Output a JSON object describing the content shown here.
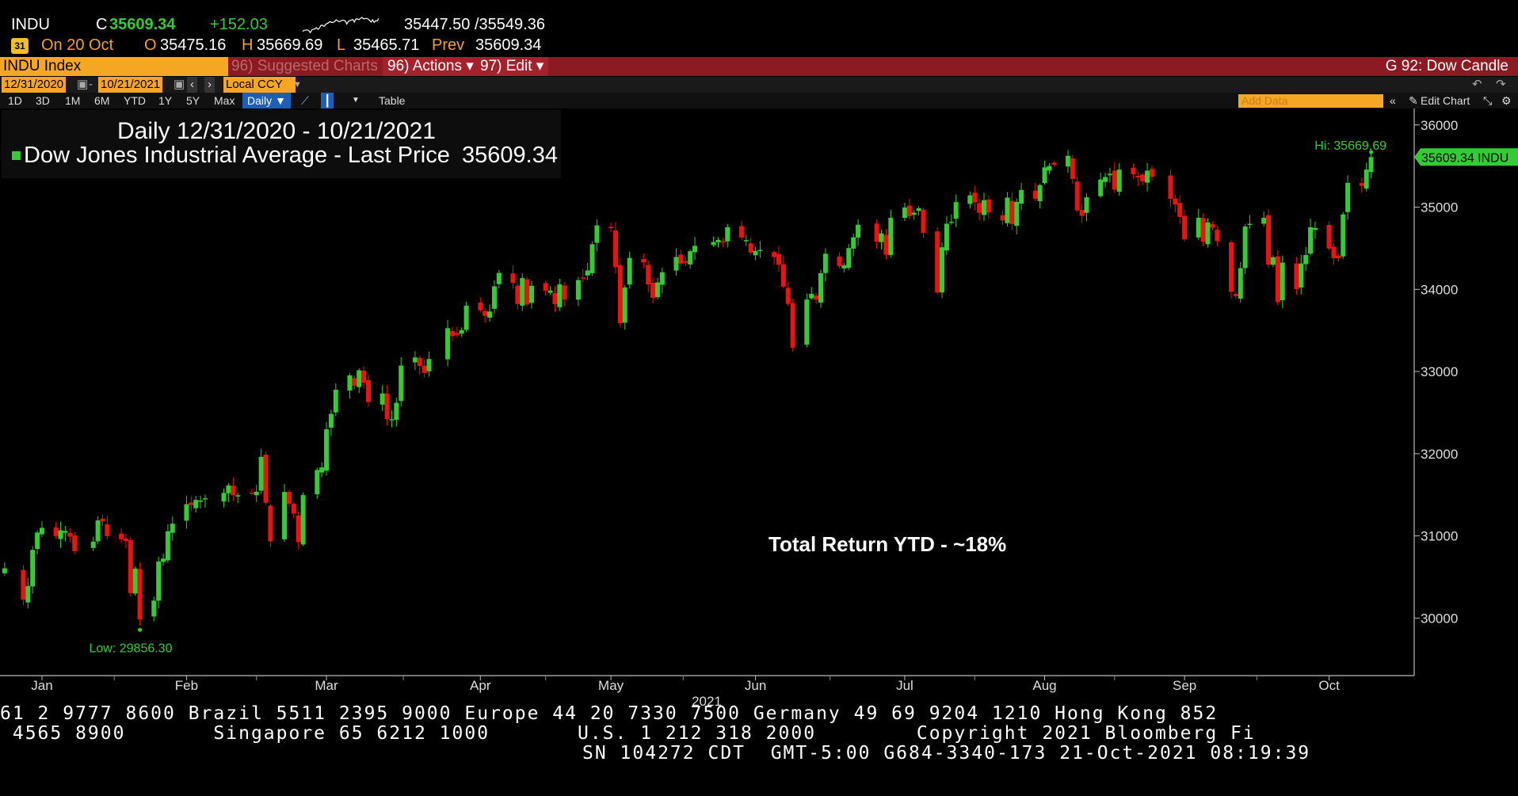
{
  "quote": {
    "ticker": "INDU",
    "close_label": "C",
    "close": "35609.34",
    "change": "+152.03",
    "bid_ask": "35447.50 /35549.36",
    "date_label": "On 20 Oct",
    "open_label": "O",
    "open": "35475.16",
    "high_label": "H",
    "high": "35669.69",
    "low_label": "L",
    "low": "35465.71",
    "prev_label": "Prev",
    "prev": "35609.34"
  },
  "toolbar": {
    "ticker_box": "INDU Index",
    "suggested": "96) Suggested Charts",
    "actions": "96) Actions ▾",
    "edit": "97) Edit ▾",
    "chart_title": "G 92: Dow Candle",
    "start_date": "12/31/2020",
    "end_date": "10/21/2021",
    "currency": "Local CCY",
    "periods": [
      "1D",
      "3D",
      "1M",
      "6M",
      "YTD",
      "1Y",
      "5Y",
      "Max"
    ],
    "frequency": "Daily ▼",
    "table": "Table",
    "add_data_placeholder": "Add Data",
    "edit_chart": "Edit Chart"
  },
  "legend": {
    "title": "Daily 12/31/2020 - 10/21/2021",
    "series": "Dow Jones Industrial Average - Last Price",
    "value": "35609.34"
  },
  "annotation": "Total Return YTD - ~18%",
  "colors": {
    "up": "#33cc33",
    "down": "#ee1111",
    "accent": "#f5a623",
    "bar": "#8b1a22"
  },
  "footer": {
    "line1": "61 2 9777 8600 Brazil 5511 2395 9000 Europe 44 20 7330 7500 Germany 49 69 9204 1210 Hong Kong 852",
    "line2": " 4565 8900       Singapore 65 6212 1000       U.S. 1 212 318 2000        Copyright 2021 Bloomberg Fi",
    "line3": "SN 104272 CDT  GMT-5:00 G684-3340-173 21-Oct-2021 08:19:39"
  },
  "chart_data": {
    "type": "candlestick",
    "title": "Daily 12/31/2020 - 10/21/2021",
    "series_name": "Dow Jones Industrial Average - Last Price",
    "last_price": 35609.34,
    "last_label": "35609.34 INDU",
    "hi_label": "Hi: 35669.69",
    "low_label": "Low: 29856.30",
    "year_label": "2021",
    "ylim": [
      29300,
      36200
    ],
    "yticks": [
      30000,
      31000,
      32000,
      33000,
      34000,
      35000,
      36000
    ],
    "xlim": [
      "2020-12-30",
      "2021-10-25"
    ],
    "months": [
      {
        "label": "Jan",
        "date": "2021-01-08"
      },
      {
        "label": "Feb",
        "date": "2021-02-08"
      },
      {
        "label": "Mar",
        "date": "2021-03-10"
      },
      {
        "label": "Apr",
        "date": "2021-04-12"
      },
      {
        "label": "May",
        "date": "2021-05-10"
      },
      {
        "label": "Jun",
        "date": "2021-06-10"
      },
      {
        "label": "Jul",
        "date": "2021-07-12"
      },
      {
        "label": "Aug",
        "date": "2021-08-11"
      },
      {
        "label": "Sep",
        "date": "2021-09-10"
      },
      {
        "label": "Oct",
        "date": "2021-10-11"
      }
    ],
    "closes": [
      [
        "2020-12-31",
        30606
      ],
      [
        "2021-01-04",
        30224
      ],
      [
        "2021-01-05",
        30392
      ],
      [
        "2021-01-06",
        30829
      ],
      [
        "2021-01-07",
        31041
      ],
      [
        "2021-01-08",
        31098
      ],
      [
        "2021-01-11",
        30998
      ],
      [
        "2021-01-12",
        31068
      ],
      [
        "2021-01-13",
        31060
      ],
      [
        "2021-01-14",
        30991
      ],
      [
        "2021-01-15",
        30814
      ],
      [
        "2021-01-19",
        30930
      ],
      [
        "2021-01-20",
        31188
      ],
      [
        "2021-01-21",
        31176
      ],
      [
        "2021-01-22",
        30997
      ],
      [
        "2021-01-25",
        30960
      ],
      [
        "2021-01-26",
        30937
      ],
      [
        "2021-01-27",
        30303
      ],
      [
        "2021-01-28",
        30603
      ],
      [
        "2021-01-29",
        29983
      ],
      [
        "2021-02-01",
        30212
      ],
      [
        "2021-02-02",
        30688
      ],
      [
        "2021-02-03",
        30724
      ],
      [
        "2021-02-04",
        31056
      ],
      [
        "2021-02-05",
        31148
      ],
      [
        "2021-02-08",
        31386
      ],
      [
        "2021-02-09",
        31375
      ],
      [
        "2021-02-10",
        31438
      ],
      [
        "2021-02-11",
        31431
      ],
      [
        "2021-02-12",
        31458
      ],
      [
        "2021-02-16",
        31523
      ],
      [
        "2021-02-17",
        31613
      ],
      [
        "2021-02-18",
        31494
      ],
      [
        "2021-02-19",
        31494
      ],
      [
        "2021-02-22",
        31522
      ],
      [
        "2021-02-23",
        31537
      ],
      [
        "2021-02-24",
        31962
      ],
      [
        "2021-02-25",
        31402
      ],
      [
        "2021-02-26",
        30932
      ],
      [
        "2021-03-01",
        31535
      ],
      [
        "2021-03-02",
        31391
      ],
      [
        "2021-03-03",
        31270
      ],
      [
        "2021-03-04",
        30924
      ],
      [
        "2021-03-05",
        31496
      ],
      [
        "2021-03-08",
        31802
      ],
      [
        "2021-03-09",
        31833
      ],
      [
        "2021-03-10",
        32297
      ],
      [
        "2021-03-11",
        32485
      ],
      [
        "2021-03-12",
        32779
      ],
      [
        "2021-03-15",
        32953
      ],
      [
        "2021-03-16",
        32826
      ],
      [
        "2021-03-17",
        33015
      ],
      [
        "2021-03-18",
        32862
      ],
      [
        "2021-03-19",
        32628
      ],
      [
        "2021-03-22",
        32732
      ],
      [
        "2021-03-23",
        32423
      ],
      [
        "2021-03-24",
        32420
      ],
      [
        "2021-03-25",
        32619
      ],
      [
        "2021-03-26",
        33072
      ],
      [
        "2021-03-29",
        33171
      ],
      [
        "2021-03-30",
        33067
      ],
      [
        "2021-03-31",
        32982
      ],
      [
        "2021-04-01",
        33153
      ],
      [
        "2021-04-05",
        33527
      ],
      [
        "2021-04-06",
        33430
      ],
      [
        "2021-04-07",
        33446
      ],
      [
        "2021-04-08",
        33504
      ],
      [
        "2021-04-09",
        33801
      ],
      [
        "2021-04-12",
        33746
      ],
      [
        "2021-04-13",
        33677
      ],
      [
        "2021-04-14",
        33730
      ],
      [
        "2021-04-15",
        34036
      ],
      [
        "2021-04-16",
        34200
      ],
      [
        "2021-04-19",
        34078
      ],
      [
        "2021-04-20",
        33821
      ],
      [
        "2021-04-21",
        34137
      ],
      [
        "2021-04-22",
        33815
      ],
      [
        "2021-04-23",
        34043
      ],
      [
        "2021-04-26",
        33981
      ],
      [
        "2021-04-27",
        33984
      ],
      [
        "2021-04-28",
        33820
      ],
      [
        "2021-04-29",
        34060
      ],
      [
        "2021-04-30",
        33875
      ],
      [
        "2021-05-03",
        34113
      ],
      [
        "2021-05-04",
        34133
      ],
      [
        "2021-05-05",
        34230
      ],
      [
        "2021-05-06",
        34548
      ],
      [
        "2021-05-07",
        34778
      ],
      [
        "2021-05-10",
        34743
      ],
      [
        "2021-05-11",
        34270
      ],
      [
        "2021-05-12",
        33587
      ],
      [
        "2021-05-13",
        34022
      ],
      [
        "2021-05-14",
        34382
      ],
      [
        "2021-05-17",
        34327
      ],
      [
        "2021-05-18",
        34060
      ],
      [
        "2021-05-19",
        33896
      ],
      [
        "2021-05-20",
        34084
      ],
      [
        "2021-05-21",
        34208
      ],
      [
        "2021-05-24",
        34394
      ],
      [
        "2021-05-25",
        34313
      ],
      [
        "2021-05-26",
        34323
      ],
      [
        "2021-05-27",
        34464
      ],
      [
        "2021-05-28",
        34529
      ],
      [
        "2021-06-01",
        34575
      ],
      [
        "2021-06-02",
        34600
      ],
      [
        "2021-06-03",
        34577
      ],
      [
        "2021-06-04",
        34756
      ],
      [
        "2021-06-07",
        34630
      ],
      [
        "2021-06-08",
        34599
      ],
      [
        "2021-06-09",
        34447
      ],
      [
        "2021-06-10",
        34466
      ],
      [
        "2021-06-11",
        34480
      ],
      [
        "2021-06-14",
        34393
      ],
      [
        "2021-06-15",
        34299
      ],
      [
        "2021-06-16",
        34033
      ],
      [
        "2021-06-17",
        33823
      ],
      [
        "2021-06-18",
        33290
      ],
      [
        "2021-06-21",
        33876
      ],
      [
        "2021-06-22",
        33945
      ],
      [
        "2021-06-23",
        33874
      ],
      [
        "2021-06-24",
        34196
      ],
      [
        "2021-06-25",
        34433
      ],
      [
        "2021-06-28",
        34283
      ],
      [
        "2021-06-29",
        34292
      ],
      [
        "2021-06-30",
        34502
      ],
      [
        "2021-07-01",
        34633
      ],
      [
        "2021-07-02",
        34786
      ],
      [
        "2021-07-06",
        34577
      ],
      [
        "2021-07-07",
        34681
      ],
      [
        "2021-07-08",
        34421
      ],
      [
        "2021-07-09",
        34870
      ],
      [
        "2021-07-12",
        34996
      ],
      [
        "2021-07-13",
        34889
      ],
      [
        "2021-07-14",
        34933
      ],
      [
        "2021-07-15",
        34987
      ],
      [
        "2021-07-16",
        34687
      ],
      [
        "2021-07-19",
        33962
      ],
      [
        "2021-07-20",
        34512
      ],
      [
        "2021-07-21",
        34798
      ],
      [
        "2021-07-22",
        34823
      ],
      [
        "2021-07-23",
        35061
      ],
      [
        "2021-07-26",
        35144
      ],
      [
        "2021-07-27",
        35058
      ],
      [
        "2021-07-28",
        34931
      ],
      [
        "2021-07-29",
        35085
      ],
      [
        "2021-07-30",
        34935
      ],
      [
        "2021-08-02",
        34838
      ],
      [
        "2021-08-03",
        35116
      ],
      [
        "2021-08-04",
        34793
      ],
      [
        "2021-08-05",
        35064
      ],
      [
        "2021-08-06",
        35209
      ],
      [
        "2021-08-09",
        35102
      ],
      [
        "2021-08-10",
        35265
      ],
      [
        "2021-08-11",
        35484
      ],
      [
        "2021-08-12",
        35500
      ],
      [
        "2021-08-13",
        35516
      ],
      [
        "2021-08-16",
        35625
      ],
      [
        "2021-08-17",
        35343
      ],
      [
        "2021-08-18",
        34960
      ],
      [
        "2021-08-19",
        34894
      ],
      [
        "2021-08-20",
        35120
      ],
      [
        "2021-08-23",
        35336
      ],
      [
        "2021-08-24",
        35367
      ],
      [
        "2021-08-25",
        35406
      ],
      [
        "2021-08-26",
        35214
      ],
      [
        "2021-08-27",
        35456
      ],
      [
        "2021-08-30",
        35400
      ],
      [
        "2021-08-31",
        35361
      ],
      [
        "2021-09-01",
        35313
      ],
      [
        "2021-09-02",
        35444
      ],
      [
        "2021-09-03",
        35369
      ],
      [
        "2021-09-07",
        35100
      ],
      [
        "2021-09-08",
        35031
      ],
      [
        "2021-09-09",
        34880
      ],
      [
        "2021-09-10",
        34608
      ],
      [
        "2021-09-13",
        34870
      ],
      [
        "2021-09-14",
        34578
      ],
      [
        "2021-09-15",
        34814
      ],
      [
        "2021-09-16",
        34751
      ],
      [
        "2021-09-17",
        34585
      ],
      [
        "2021-09-20",
        33970
      ],
      [
        "2021-09-21",
        33919
      ],
      [
        "2021-09-22",
        34258
      ],
      [
        "2021-09-23",
        34765
      ],
      [
        "2021-09-24",
        34798
      ],
      [
        "2021-09-27",
        34870
      ],
      [
        "2021-09-28",
        34300
      ],
      [
        "2021-09-29",
        34390
      ],
      [
        "2021-09-30",
        33844
      ],
      [
        "2021-10-01",
        34326
      ],
      [
        "2021-10-04",
        34002
      ],
      [
        "2021-10-05",
        34315
      ],
      [
        "2021-10-06",
        34417
      ],
      [
        "2021-10-07",
        34755
      ],
      [
        "2021-10-08",
        34746
      ],
      [
        "2021-10-11",
        34496
      ],
      [
        "2021-10-12",
        34378
      ],
      [
        "2021-10-13",
        34377
      ],
      [
        "2021-10-14",
        34912
      ],
      [
        "2021-10-15",
        35295
      ],
      [
        "2021-10-18",
        35258
      ],
      [
        "2021-10-19",
        35457
      ],
      [
        "2021-10-20",
        35609
      ]
    ]
  }
}
